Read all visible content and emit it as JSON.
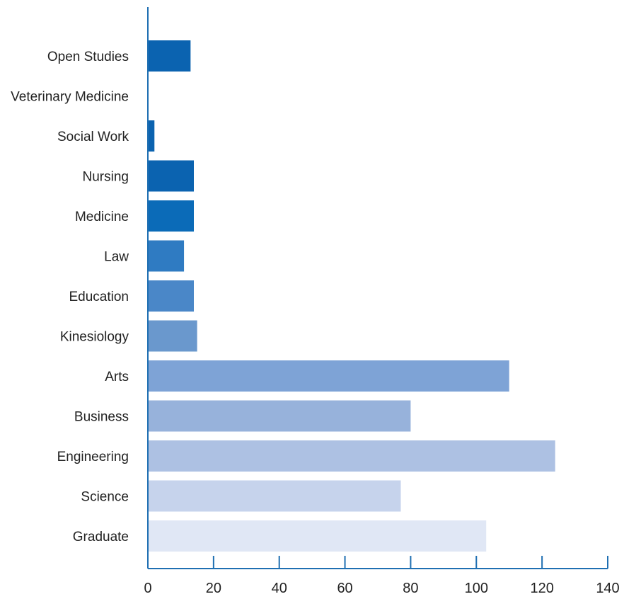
{
  "chart_data": {
    "type": "bar",
    "orientation": "horizontal",
    "title": "",
    "xlabel": "",
    "ylabel": "",
    "categories": [
      "Open Studies",
      "Veterinary Medicine",
      "Social Work",
      "Nursing",
      "Medicine",
      "Law",
      "Education",
      "Kinesiology",
      "Arts",
      "Business",
      "Engineering",
      "Science",
      "Graduate"
    ],
    "values": [
      13,
      0,
      2,
      14,
      14,
      11,
      14,
      15,
      110,
      80,
      124,
      77,
      103
    ],
    "bar_colors": [
      "#0b63b0",
      "#0b63b0",
      "#0b63b0",
      "#0b63b0",
      "#0b6bb8",
      "#2f7bc2",
      "#4a87c8",
      "#6a98cd",
      "#7ea3d6",
      "#97b2db",
      "#adc1e3",
      "#c6d3ec",
      "#e0e7f5"
    ],
    "axis_color": "#1f6fb2",
    "xlim": [
      0,
      140
    ],
    "xticks": [
      0,
      20,
      40,
      60,
      80,
      100,
      120,
      140
    ],
    "grid": false,
    "legend": "none"
  }
}
